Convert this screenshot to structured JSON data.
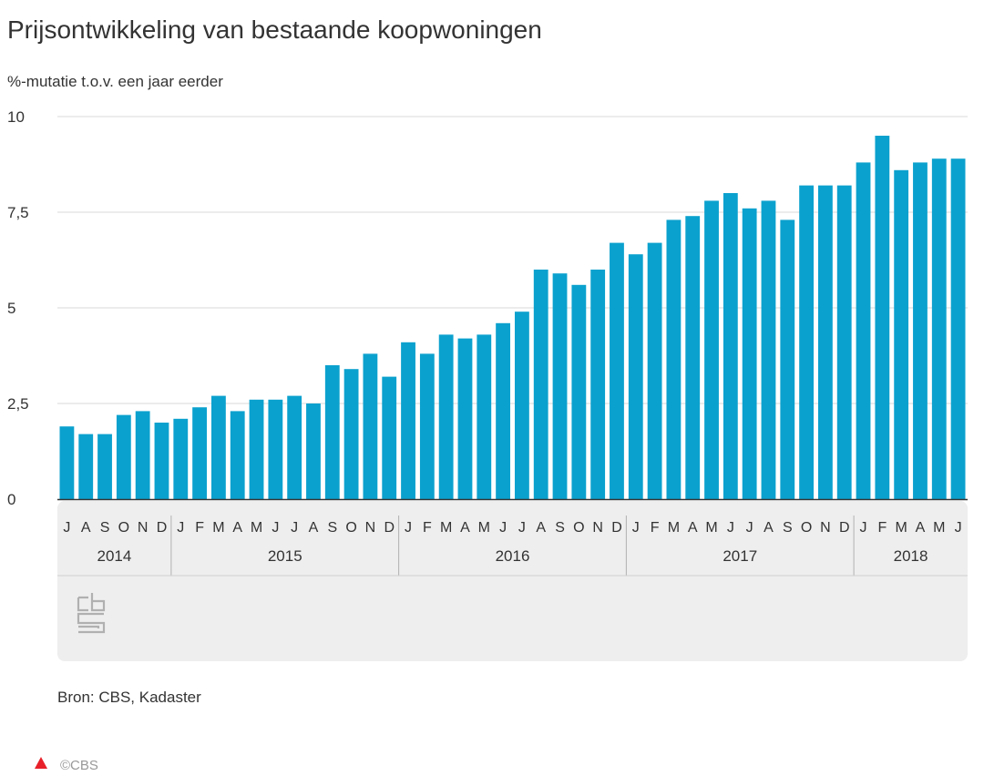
{
  "chart_data": {
    "type": "bar",
    "title": "Prijsontwikkeling van bestaande koopwoningen",
    "subtitle": "%-mutatie t.o.v. een jaar eerder",
    "ylabel": "%-mutatie t.o.v. een jaar eerder",
    "xlabel": "",
    "ylim": [
      0,
      10
    ],
    "yticks": [
      0,
      2.5,
      5,
      7.5,
      10
    ],
    "ytick_labels": [
      "0",
      "2,5",
      "5",
      "7,5",
      "10"
    ],
    "grid": true,
    "months": [
      "J",
      "A",
      "S",
      "O",
      "N",
      "D",
      "J",
      "F",
      "M",
      "A",
      "M",
      "J",
      "J",
      "A",
      "S",
      "O",
      "N",
      "D",
      "J",
      "F",
      "M",
      "A",
      "M",
      "J",
      "J",
      "A",
      "S",
      "O",
      "N",
      "D",
      "J",
      "F",
      "M",
      "A",
      "M",
      "J",
      "J",
      "A",
      "S",
      "O",
      "N",
      "D",
      "J",
      "F",
      "M",
      "A",
      "M",
      "J"
    ],
    "years": [
      {
        "label": "2014",
        "start": 0,
        "count": 6
      },
      {
        "label": "2015",
        "start": 6,
        "count": 12
      },
      {
        "label": "2016",
        "start": 18,
        "count": 12
      },
      {
        "label": "2017",
        "start": 30,
        "count": 12
      },
      {
        "label": "2018",
        "start": 42,
        "count": 6
      }
    ],
    "series": [
      {
        "name": "Prijsontwikkeling",
        "color": "#0ba1ce",
        "values": [
          1.9,
          1.7,
          1.7,
          2.2,
          2.3,
          2.0,
          2.1,
          2.4,
          2.7,
          2.3,
          2.6,
          2.6,
          2.7,
          2.5,
          3.5,
          3.4,
          3.8,
          3.2,
          4.1,
          3.8,
          4.3,
          4.2,
          4.3,
          4.6,
          4.9,
          6.0,
          5.9,
          5.6,
          6.0,
          6.7,
          6.4,
          6.7,
          7.3,
          7.4,
          7.8,
          8.0,
          7.6,
          7.8,
          7.3,
          8.2,
          8.2,
          8.2,
          8.8,
          9.5,
          8.6,
          8.8,
          8.9,
          8.9
        ]
      }
    ]
  },
  "footer": {
    "source": "Bron: CBS, Kadaster",
    "copyright": "©CBS",
    "logo": "cbs-logo"
  },
  "colors": {
    "bar": "#0ba1ce",
    "grid": "#d9d9d9",
    "axis_band": "#eeeeee",
    "marker": "#e8202a"
  }
}
